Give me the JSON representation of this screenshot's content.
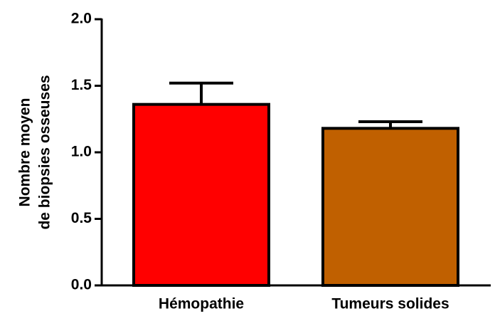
{
  "chart_data": {
    "type": "bar",
    "y_label": [
      "Nombre moyen",
      "de biopsies osseuses"
    ],
    "categories": [
      "Hémopathie",
      "Tumeurs solides"
    ],
    "values": [
      1.36,
      1.18
    ],
    "errors": [
      0.16,
      0.05
    ],
    "colors": [
      "#ff0000",
      "#c06000"
    ],
    "ylim": [
      0,
      2
    ],
    "yticks": [
      {
        "value": 0,
        "label": "0.0"
      },
      {
        "value": 0.5,
        "label": "0.5"
      },
      {
        "value": 1,
        "label": "1.0"
      },
      {
        "value": 1.5,
        "label": "1.5"
      },
      {
        "value": 2,
        "label": "2.0"
      }
    ]
  }
}
